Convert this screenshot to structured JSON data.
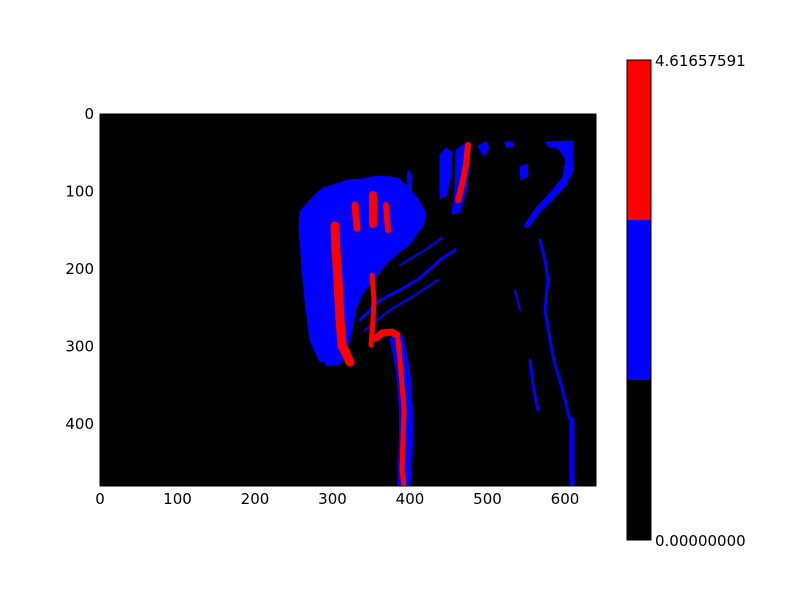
{
  "chart_data": {
    "type": "heatmap",
    "title": "",
    "xlabel": "",
    "ylabel": "",
    "xlim": [
      0,
      640
    ],
    "ylim": [
      480,
      0
    ],
    "x_ticks": [
      "0",
      "100",
      "200",
      "300",
      "400",
      "500",
      "600"
    ],
    "y_ticks": [
      "0",
      "100",
      "200",
      "300",
      "400"
    ],
    "grid": false,
    "colormap": {
      "type": "discrete",
      "levels": 3,
      "colors": [
        "#000000",
        "#0000ff",
        "#ff0000"
      ],
      "min_label": "0.00000000",
      "max_label": "4.61657591",
      "min": 0.0,
      "max": 4.61657591
    },
    "background_value": 0.0
  }
}
